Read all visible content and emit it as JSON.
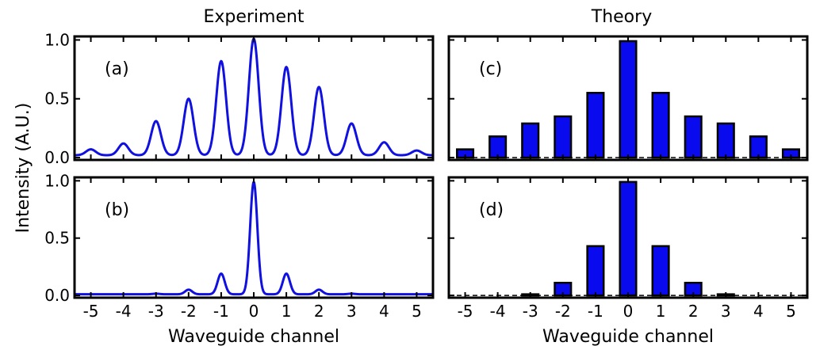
{
  "colors": {
    "line": "#1010e0",
    "bar": "#0a0aee"
  },
  "figure": {
    "ylabel": "Intensity (A.U.)",
    "columns": [
      "Experiment",
      "Theory"
    ]
  },
  "chart_data": [
    {
      "type": "line",
      "panel": "(a)",
      "title": "Experiment",
      "xlabel": "",
      "ylabel": "Intensity (A.U.)",
      "xlim": [
        -5.5,
        5.5
      ],
      "ylim": [
        -0.02,
        1.03
      ],
      "xticks": [
        -5,
        -4,
        -3,
        -2,
        -1,
        0,
        1,
        2,
        3,
        4,
        5
      ],
      "xtick_labels": [],
      "yticks": [
        0.0,
        0.5,
        1.0
      ],
      "ytick_labels": [
        "0.0",
        "0.5",
        "1.0"
      ],
      "peak_width": 0.15,
      "floor": 0.02,
      "series": [
        {
          "x": [
            -5,
            -4,
            -3,
            -2,
            -1,
            0,
            1,
            2,
            3,
            4,
            5
          ],
          "peaks": [
            0.05,
            0.1,
            0.29,
            0.48,
            0.8,
            0.99,
            0.75,
            0.58,
            0.27,
            0.11,
            0.04
          ]
        }
      ]
    },
    {
      "type": "line",
      "panel": "(b)",
      "title": "",
      "xlabel": "Waveguide channel",
      "ylabel": "Intensity (A.U.)",
      "xlim": [
        -5.5,
        5.5
      ],
      "ylim": [
        -0.02,
        1.03
      ],
      "xticks": [
        -5,
        -4,
        -3,
        -2,
        -1,
        0,
        1,
        2,
        3,
        4,
        5
      ],
      "xtick_labels": [
        "-5",
        "-4",
        "-3",
        "-2",
        "-1",
        "0",
        "1",
        "2",
        "3",
        "4",
        "5"
      ],
      "yticks": [
        0.0,
        0.5,
        1.0
      ],
      "ytick_labels": [
        "0.0",
        "0.5",
        "1.0"
      ],
      "peak_width": 0.11,
      "floor": 0.01,
      "series": [
        {
          "x": [
            -5,
            -4,
            -3,
            -2,
            -1,
            0,
            1,
            2,
            3,
            4,
            5
          ],
          "peaks": [
            0.0,
            0.0,
            0.005,
            0.04,
            0.18,
            0.98,
            0.18,
            0.04,
            0.005,
            0.0,
            0.0
          ]
        }
      ]
    },
    {
      "type": "bar",
      "panel": "(c)",
      "title": "Theory",
      "xlabel": "",
      "ylabel": "",
      "xlim": [
        -5.5,
        5.5
      ],
      "ylim": [
        -0.02,
        1.03
      ],
      "bar_width": 0.5,
      "xticks": [
        -5,
        -4,
        -3,
        -2,
        -1,
        0,
        1,
        2,
        3,
        4,
        5
      ],
      "xtick_labels": [],
      "yticks": [
        0.0,
        0.5,
        1.0
      ],
      "ytick_labels": [],
      "categories": [
        -5,
        -4,
        -3,
        -2,
        -1,
        0,
        1,
        2,
        3,
        4,
        5
      ],
      "values": [
        0.07,
        0.18,
        0.29,
        0.35,
        0.55,
        0.99,
        0.55,
        0.35,
        0.29,
        0.18,
        0.07
      ]
    },
    {
      "type": "bar",
      "panel": "(d)",
      "title": "",
      "xlabel": "Waveguide channel",
      "ylabel": "",
      "xlim": [
        -5.5,
        5.5
      ],
      "ylim": [
        -0.02,
        1.03
      ],
      "bar_width": 0.5,
      "xticks": [
        -5,
        -4,
        -3,
        -2,
        -1,
        0,
        1,
        2,
        3,
        4,
        5
      ],
      "xtick_labels": [
        "-5",
        "-4",
        "-3",
        "-2",
        "-1",
        "0",
        "1",
        "2",
        "3",
        "4",
        "5"
      ],
      "yticks": [
        0.0,
        0.5,
        1.0
      ],
      "ytick_labels": [],
      "categories": [
        -5,
        -4,
        -3,
        -2,
        -1,
        0,
        1,
        2,
        3,
        4,
        5
      ],
      "values": [
        0.0,
        0.0,
        0.01,
        0.11,
        0.43,
        0.99,
        0.43,
        0.11,
        0.01,
        0.0,
        0.0
      ]
    }
  ]
}
